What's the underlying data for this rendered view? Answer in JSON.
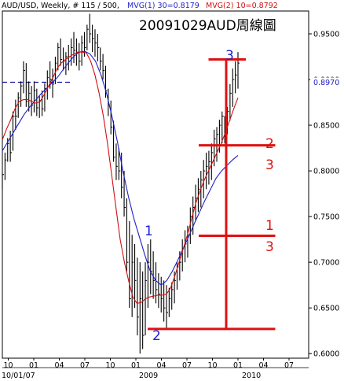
{
  "header": {
    "symbol": "AUD/USD",
    "info": ", Weekly, # 115 / 500,",
    "ma1_label": "MVG(1) 30=0.8179",
    "ma2_label": "MVG(2) 10=0.8792",
    "chart_title": "20091029AUD周線圖"
  },
  "colors": {
    "background": "#ffffff",
    "frame": "#000000",
    "price": "#000000",
    "ma30": "#1f1fc8",
    "ma10": "#d01010",
    "annotation_red": "#e01010",
    "annotation_blue": "#2020d0",
    "reference_line": "#1010a0",
    "current_price": "#2020c8"
  },
  "annotations": {
    "wave1": "1",
    "wave2": "2",
    "wave3": "3",
    "ratio_top_num": "2",
    "ratio_top_den": "3",
    "ratio_bottom_num": "1",
    "ratio_bottom_den": "3"
  },
  "chart_data": {
    "type": "ohlc",
    "title": "20091029AUD周線圖",
    "ylim": [
      0.595,
      0.975
    ],
    "y_ticks": [
      "0.9500",
      "0.9000",
      "0.8500",
      "0.8000",
      "0.7500",
      "0.7000",
      "0.6500",
      "0.6000"
    ],
    "y_tick_values": [
      0.95,
      0.9,
      0.85,
      0.8,
      0.75,
      0.7,
      0.65,
      0.6
    ],
    "x_ticks": [
      "10",
      "01",
      "04",
      "07",
      "10",
      "01",
      "04",
      "07",
      "10",
      "01",
      "04",
      "07"
    ],
    "x_tick_weeks": [
      3,
      16,
      29,
      42,
      55,
      68,
      81,
      94,
      107,
      120,
      133,
      146
    ],
    "x_range_weeks": [
      0,
      156
    ],
    "year_labels": [
      {
        "label": "10/01/07",
        "week": -9
      },
      {
        "label": "2009",
        "week": 70
      },
      {
        "label": "2010",
        "week": 122
      }
    ],
    "current_price": {
      "label": "0.8970",
      "value": 0.897
    },
    "reference_level": 0.897,
    "fib_levels": {
      "top": 0.922,
      "bottom": 0.627,
      "two_thirds": 0.828,
      "one_third": 0.729,
      "vertical_week": 114
    },
    "bars": [
      [
        0.798,
        0.78,
        0.796
      ],
      [
        0.82,
        0.79,
        0.812
      ],
      [
        0.836,
        0.81,
        0.83
      ],
      [
        0.844,
        0.81,
        0.82
      ],
      [
        0.865,
        0.822,
        0.86
      ],
      [
        0.878,
        0.845,
        0.86
      ],
      [
        0.886,
        0.858,
        0.88
      ],
      [
        0.898,
        0.87,
        0.893
      ],
      [
        0.92,
        0.885,
        0.91
      ],
      [
        0.918,
        0.87,
        0.876
      ],
      [
        0.898,
        0.865,
        0.885
      ],
      [
        0.893,
        0.86,
        0.872
      ],
      [
        0.898,
        0.864,
        0.888
      ],
      [
        0.89,
        0.86,
        0.869
      ],
      [
        0.882,
        0.858,
        0.877
      ],
      [
        0.888,
        0.86,
        0.868
      ],
      [
        0.896,
        0.865,
        0.89
      ],
      [
        0.91,
        0.878,
        0.902
      ],
      [
        0.92,
        0.89,
        0.9
      ],
      [
        0.912,
        0.88,
        0.895
      ],
      [
        0.925,
        0.895,
        0.918
      ],
      [
        0.94,
        0.91,
        0.935
      ],
      [
        0.945,
        0.915,
        0.922
      ],
      [
        0.935,
        0.91,
        0.92
      ],
      [
        0.93,
        0.905,
        0.925
      ],
      [
        0.938,
        0.91,
        0.925
      ],
      [
        0.945,
        0.915,
        0.935
      ],
      [
        0.952,
        0.918,
        0.932
      ],
      [
        0.945,
        0.915,
        0.93
      ],
      [
        0.94,
        0.91,
        0.92
      ],
      [
        0.948,
        0.915,
        0.94
      ],
      [
        0.952,
        0.925,
        0.935
      ],
      [
        0.96,
        0.932,
        0.955
      ],
      [
        0.972,
        0.94,
        0.95
      ],
      [
        0.96,
        0.93,
        0.945
      ],
      [
        0.955,
        0.925,
        0.94
      ],
      [
        0.95,
        0.92,
        0.935
      ],
      [
        0.935,
        0.91,
        0.92
      ],
      [
        0.928,
        0.9,
        0.91
      ],
      [
        0.915,
        0.88,
        0.888
      ],
      [
        0.89,
        0.86,
        0.872
      ],
      [
        0.877,
        0.84,
        0.848
      ],
      [
        0.855,
        0.81,
        0.815
      ],
      [
        0.83,
        0.79,
        0.805
      ],
      [
        0.825,
        0.79,
        0.8
      ],
      [
        0.82,
        0.77,
        0.782
      ],
      [
        0.8,
        0.75,
        0.76
      ],
      [
        0.77,
        0.69,
        0.7
      ],
      [
        0.745,
        0.65,
        0.66
      ],
      [
        0.73,
        0.64,
        0.7
      ],
      [
        0.72,
        0.65,
        0.68
      ],
      [
        0.705,
        0.62,
        0.64
      ],
      [
        0.7,
        0.6,
        0.66
      ],
      [
        0.69,
        0.605,
        0.62
      ],
      [
        0.7,
        0.62,
        0.68
      ],
      [
        0.72,
        0.65,
        0.7
      ],
      [
        0.725,
        0.665,
        0.69
      ],
      [
        0.712,
        0.66,
        0.68
      ],
      [
        0.7,
        0.655,
        0.67
      ],
      [
        0.688,
        0.65,
        0.665
      ],
      [
        0.684,
        0.645,
        0.66
      ],
      [
        0.68,
        0.635,
        0.65
      ],
      [
        0.675,
        0.628,
        0.645
      ],
      [
        0.672,
        0.64,
        0.66
      ],
      [
        0.678,
        0.648,
        0.67
      ],
      [
        0.69,
        0.655,
        0.68
      ],
      [
        0.7,
        0.67,
        0.695
      ],
      [
        0.712,
        0.68,
        0.7
      ],
      [
        0.725,
        0.69,
        0.715
      ],
      [
        0.735,
        0.7,
        0.72
      ],
      [
        0.74,
        0.705,
        0.73
      ],
      [
        0.76,
        0.72,
        0.75
      ],
      [
        0.772,
        0.73,
        0.76
      ],
      [
        0.785,
        0.745,
        0.77
      ],
      [
        0.792,
        0.755,
        0.78
      ],
      [
        0.8,
        0.76,
        0.79
      ],
      [
        0.812,
        0.77,
        0.8
      ],
      [
        0.82,
        0.78,
        0.805
      ],
      [
        0.822,
        0.785,
        0.81
      ],
      [
        0.83,
        0.79,
        0.82
      ],
      [
        0.845,
        0.805,
        0.835
      ],
      [
        0.848,
        0.81,
        0.84
      ],
      [
        0.856,
        0.82,
        0.85
      ],
      [
        0.865,
        0.83,
        0.86
      ],
      [
        0.86,
        0.83,
        0.855
      ],
      [
        0.87,
        0.84,
        0.865
      ],
      [
        0.895,
        0.855,
        0.885
      ],
      [
        0.912,
        0.87,
        0.9
      ],
      [
        0.92,
        0.885,
        0.905
      ],
      [
        0.93,
        0.89,
        0.918
      ]
    ],
    "bar_weeks_start": 0,
    "bar_weeks_end": 120,
    "ma10": [
      0.834,
      0.846,
      0.856,
      0.868,
      0.876,
      0.878,
      0.878,
      0.876,
      0.874,
      0.876,
      0.884,
      0.893,
      0.902,
      0.912,
      0.918,
      0.922,
      0.925,
      0.928,
      0.93,
      0.93,
      0.929,
      0.92,
      0.905,
      0.885,
      0.86,
      0.83,
      0.795,
      0.76,
      0.725,
      0.7,
      0.68,
      0.662,
      0.655,
      0.656,
      0.66,
      0.662,
      0.663,
      0.664,
      0.664,
      0.665,
      0.672,
      0.685,
      0.7,
      0.715,
      0.73,
      0.748,
      0.765,
      0.778,
      0.79,
      0.8,
      0.81,
      0.82,
      0.83,
      0.842,
      0.855,
      0.868,
      0.88
    ],
    "ma30": [
      0.822,
      0.832,
      0.842,
      0.852,
      0.862,
      0.87,
      0.877,
      0.884,
      0.89,
      0.896,
      0.902,
      0.91,
      0.918,
      0.925,
      0.93,
      0.931,
      0.928,
      0.92,
      0.905,
      0.885,
      0.86,
      0.832,
      0.8,
      0.772,
      0.748,
      0.728,
      0.708,
      0.69,
      0.68,
      0.675,
      0.68,
      0.69,
      0.702,
      0.715,
      0.728,
      0.742,
      0.755,
      0.768,
      0.78,
      0.792,
      0.8,
      0.806,
      0.812,
      0.817
    ]
  }
}
